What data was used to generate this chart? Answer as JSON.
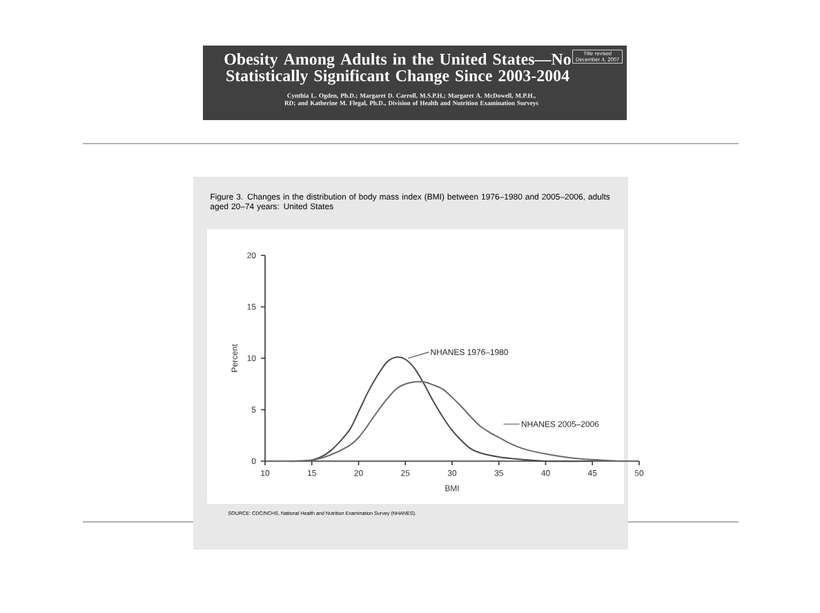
{
  "chart_data": {
    "type": "line",
    "title": "Obesity Among Adults in the United States—No Statistically Significant Change Since 2003-2004",
    "subtitle": "Cynthia L. Ogden, Ph.D.; Margaret D. Carroll, M.S.P.H.; Margaret A. McDowell, M.P.H., RD; and Katherine M. Flegal, Ph.D., Division of Health and Nutrition Examination Surveys",
    "annotations": [
      "Title revised December 4, 2007",
      "Figure 3. Changes in the distribution of body mass index (BMI) between 1976–1980 and 2005–2006, adults aged 20–74 years: United States",
      "SOURCE: CDC/NCHS, National Health and Nutrition Examination Survey (NHANES)."
    ],
    "xlabel": "BMI",
    "ylabel": "Percent",
    "xlim": [
      10,
      50
    ],
    "ylim": [
      0,
      20
    ],
    "xticks": [
      10,
      15,
      20,
      25,
      30,
      35,
      40,
      45,
      50
    ],
    "yticks": [
      0,
      5,
      10,
      15,
      20
    ],
    "marker": "none",
    "legend": "right",
    "series": [
      {
        "name": "NHANES 1976–1980",
        "color": "#4a4a4a",
        "x": [
          12,
          15,
          17,
          19,
          20,
          21,
          22,
          23,
          24,
          25,
          26,
          27,
          28,
          29,
          30,
          31,
          32,
          33,
          35,
          37,
          40,
          45
        ],
        "values": [
          0,
          0.1,
          1,
          3,
          4.8,
          6.7,
          8.3,
          9.6,
          10.1,
          9.9,
          9.0,
          7.5,
          5.8,
          4.3,
          3.0,
          2.0,
          1.2,
          0.8,
          0.4,
          0.2,
          0,
          0
        ]
      },
      {
        "name": "NHANES 2005–2006",
        "color": "#6a6a6a",
        "x": [
          12,
          15,
          17,
          19,
          20,
          21,
          22,
          23,
          24,
          25,
          26,
          27,
          28,
          29,
          30,
          31,
          32,
          33,
          34,
          35,
          36,
          37,
          38,
          40,
          42,
          44,
          46,
          48
        ],
        "values": [
          0,
          0.1,
          0.6,
          1.5,
          2.3,
          3.5,
          4.8,
          6,
          7,
          7.5,
          7.7,
          7.7,
          7.4,
          7,
          6.2,
          5.3,
          4.3,
          3.4,
          2.8,
          2.3,
          1.8,
          1.4,
          1.1,
          0.7,
          0.4,
          0.2,
          0.1,
          0
        ]
      }
    ]
  }
}
